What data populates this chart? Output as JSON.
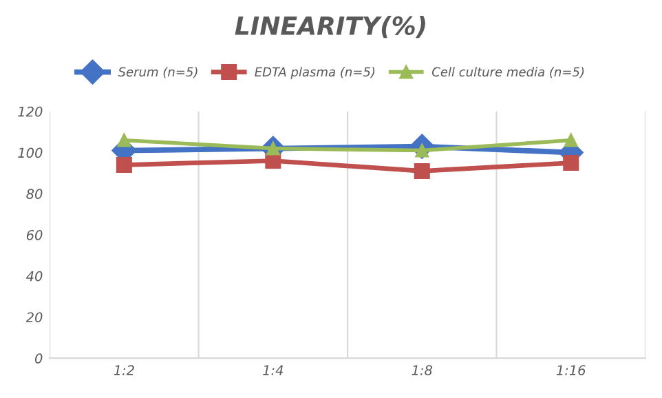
{
  "chart_data": {
    "type": "line",
    "title": "LINEARITY(%)",
    "categories": [
      "1:2",
      "1:4",
      "1:8",
      "1:16"
    ],
    "series": [
      {
        "name": "Serum (n=5)",
        "color": "#4472c4",
        "marker": "diamond",
        "values": [
          101,
          102,
          103,
          100
        ]
      },
      {
        "name": "EDTA plasma (n=5)",
        "color": "#c0504d",
        "marker": "square",
        "values": [
          94,
          96,
          91,
          95
        ]
      },
      {
        "name": "Cell culture media (n=5)",
        "color": "#9bbb59",
        "marker": "triangle",
        "values": [
          106,
          102,
          101,
          106
        ]
      }
    ],
    "ylim": [
      0,
      120
    ],
    "yticks": [
      0,
      20,
      40,
      60,
      80,
      100,
      120
    ],
    "grid": "x",
    "legend": "top"
  }
}
